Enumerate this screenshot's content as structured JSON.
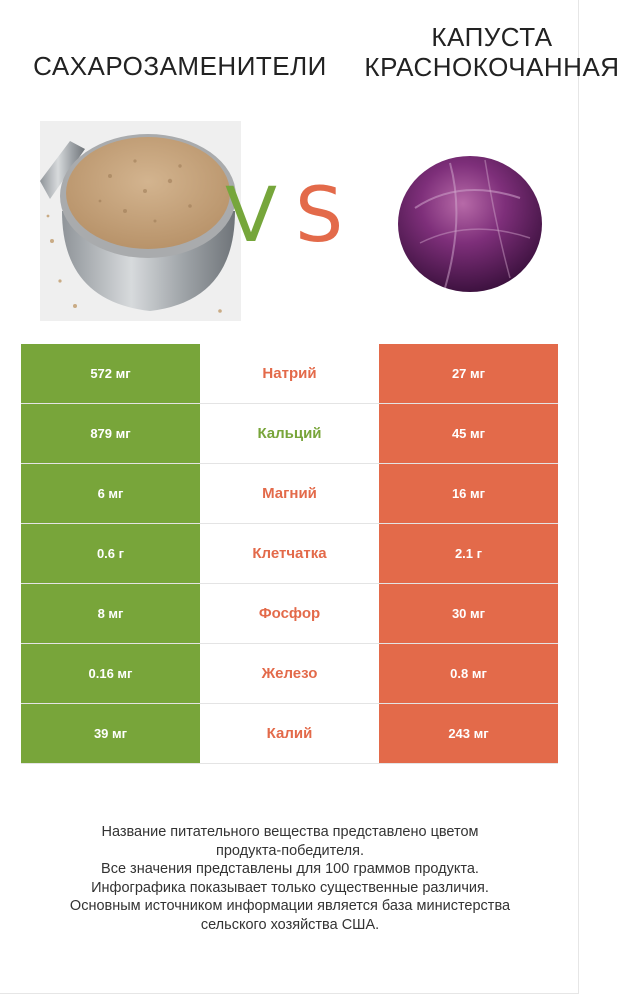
{
  "header": {
    "left_title": "САХАРОЗАМЕНИТЕЛИ",
    "right_title_line1": "КАПУСТА",
    "right_title_line2": "КРАСНОКОЧАННАЯ",
    "vs_v": "V",
    "vs_s": "S"
  },
  "colors": {
    "left_product": "#78a53a",
    "right_product": "#e36a4a"
  },
  "rows": [
    {
      "left": "572 мг",
      "name": "Натрий",
      "right": "27 мг",
      "winner": "right"
    },
    {
      "left": "879 мг",
      "name": "Кальций",
      "right": "45 мг",
      "winner": "left"
    },
    {
      "left": "6 мг",
      "name": "Магний",
      "right": "16 мг",
      "winner": "right"
    },
    {
      "left": "0.6 г",
      "name": "Клетчатка",
      "right": "2.1 г",
      "winner": "right"
    },
    {
      "left": "8 мг",
      "name": "Фосфор",
      "right": "30 мг",
      "winner": "right"
    },
    {
      "left": "0.16 мг",
      "name": "Железо",
      "right": "0.8 мг",
      "winner": "right"
    },
    {
      "left": "39 мг",
      "name": "Калий",
      "right": "243 мг",
      "winner": "right"
    }
  ],
  "footer": {
    "line1": "Название питательного вещества представлено цветом",
    "line2": "продукта-победителя.",
    "line3": "Все значения представлены для 100 граммов продукта.",
    "line4": "Инфографика показывает только существенные различия.",
    "line5": "Основным источником информации является база министерства",
    "line6": "сельского хозяйства США."
  }
}
